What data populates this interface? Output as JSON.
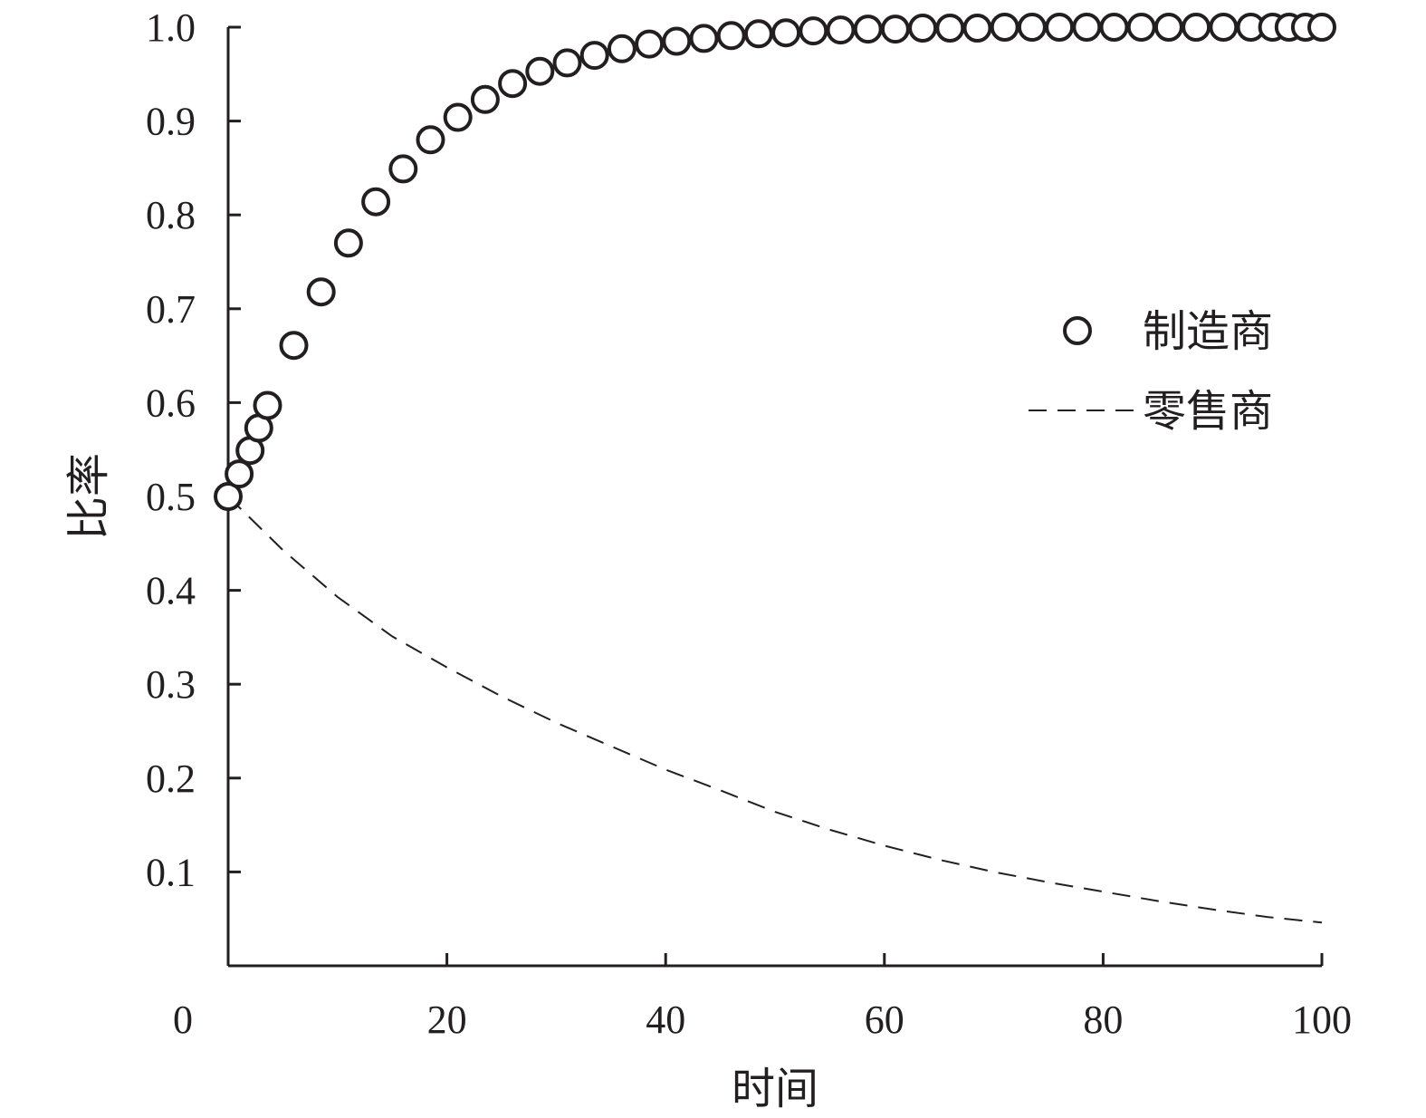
{
  "chart_data": {
    "type": "line",
    "xlabel": "时间",
    "ylabel": "比率",
    "xlim": [
      0,
      100
    ],
    "ylim": [
      0,
      1.0
    ],
    "x_ticks": [
      0,
      20,
      40,
      60,
      80,
      100
    ],
    "x_tick_labels": [
      "0",
      "20",
      "40",
      "60",
      "80",
      "100"
    ],
    "y_ticks": [
      0.1,
      0.2,
      0.3,
      0.4,
      0.5,
      0.6,
      0.7,
      0.8,
      0.9,
      1.0
    ],
    "y_tick_labels": [
      "0.1",
      "0.2",
      "0.3",
      "0.4",
      "0.5",
      "0.6",
      "0.7",
      "0.8",
      "0.9",
      "1.0"
    ],
    "grid": false,
    "legend_position": "right",
    "series": [
      {
        "name": "制造商",
        "style": "scatter-open-circle",
        "x": [
          0,
          1,
          2,
          2.8,
          3.6,
          6,
          8.5,
          11,
          13.5,
          16,
          18.5,
          21,
          23.5,
          26,
          28.5,
          31,
          33.5,
          36,
          38.5,
          41,
          43.5,
          46,
          48.5,
          51,
          53.5,
          56,
          58.5,
          61,
          63.5,
          66,
          68.5,
          71,
          73.5,
          76,
          78.5,
          81,
          83.5,
          86,
          88.5,
          91,
          93.5,
          95.5,
          97,
          98.5,
          100
        ],
        "y": [
          0.5,
          0.524,
          0.549,
          0.573,
          0.597,
          0.661,
          0.718,
          0.77,
          0.814,
          0.849,
          0.88,
          0.904,
          0.923,
          0.94,
          0.953,
          0.962,
          0.97,
          0.977,
          0.982,
          0.985,
          0.988,
          0.991,
          0.993,
          0.994,
          0.996,
          0.997,
          0.998,
          0.998,
          0.999,
          0.999,
          0.999,
          1.0,
          1.0,
          1.0,
          1.0,
          1.0,
          1.0,
          1.0,
          1.0,
          1.0,
          1.0,
          1.0,
          1.0,
          1.0,
          1.0
        ]
      },
      {
        "name": "零售商",
        "style": "dashed-line",
        "x": [
          0,
          5,
          10,
          15,
          20,
          25,
          30,
          35,
          40,
          45,
          50,
          55,
          60,
          65,
          70,
          75,
          80,
          85,
          90,
          95,
          100
        ],
        "y": [
          0.5,
          0.443,
          0.393,
          0.351,
          0.318,
          0.287,
          0.259,
          0.234,
          0.209,
          0.187,
          0.164,
          0.145,
          0.128,
          0.113,
          0.1,
          0.089,
          0.079,
          0.069,
          0.06,
          0.052,
          0.046
        ]
      }
    ]
  }
}
